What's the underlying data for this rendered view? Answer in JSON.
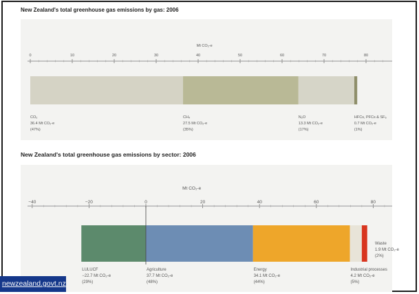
{
  "chart_data": [
    {
      "type": "bar",
      "subtype": "single-stacked-bar",
      "title": "New Zealand's total greenhouse gas emissions by gas: 2006",
      "xlabel": "Mt CO₂-e",
      "xlim": [
        0,
        85
      ],
      "ticks": [
        0,
        10,
        20,
        30,
        40,
        50,
        60,
        70,
        80
      ],
      "segments": [
        {
          "name": "CO₂",
          "value": 36.4,
          "amount_label": "36.4 Mt CO₂-e",
          "share_label": "(47%)",
          "color": "#d5d3c5"
        },
        {
          "name": "CH₄",
          "value": 27.5,
          "amount_label": "27.5 Mt CO₂-e",
          "share_label": "(35%)",
          "color": "#b9b996"
        },
        {
          "name": "N₂O",
          "value": 13.3,
          "amount_label": "13.3 Mt CO₂-e",
          "share_label": "(17%)",
          "color": "#d6d5c8"
        },
        {
          "name": "HFCs, PFCs & SF₆",
          "value": 0.7,
          "amount_label": "0.7 Mt CO₂-e",
          "share_label": "(1%)",
          "color": "#8e8e6a"
        }
      ]
    },
    {
      "type": "bar",
      "subtype": "single-stacked-bar",
      "title": "New Zealand's total greenhouse gas emissions by sector: 2006",
      "xlabel": "Mt CO₂-e",
      "xlim": [
        -45,
        87
      ],
      "ticks": [
        -40,
        -20,
        0,
        20,
        40,
        60,
        80
      ],
      "segments": [
        {
          "name": "LULUCF",
          "start": -22.7,
          "value": 22.7,
          "amount_label": "−22.7 Mt CO₂-e",
          "share_label": "(29%)",
          "color": "#5c8a6c"
        },
        {
          "name": "Agriculture",
          "start": 0,
          "value": 37.7,
          "amount_label": "37.7 Mt CO₂-e",
          "share_label": "(48%)",
          "color": "#6d8db4"
        },
        {
          "name": "Energy",
          "start": 37.7,
          "value": 34.1,
          "amount_label": "34.1 Mt CO₂-e",
          "share_label": "(44%)",
          "color": "#eea62a"
        },
        {
          "name": "Industrial processes",
          "start": 71.8,
          "value": 4.2,
          "amount_label": "4.2 Mt CO₂-e",
          "share_label": "(5%)",
          "color": "#e8e4d8"
        },
        {
          "name": "Waste",
          "start": 76.0,
          "value": 1.9,
          "amount_label": "1.9 Mt CO₂-e",
          "share_label": "(2%)",
          "color": "#d8351f"
        }
      ]
    }
  ],
  "logo": {
    "text": "newzealand.govt.nz",
    "color": "#14378a"
  }
}
